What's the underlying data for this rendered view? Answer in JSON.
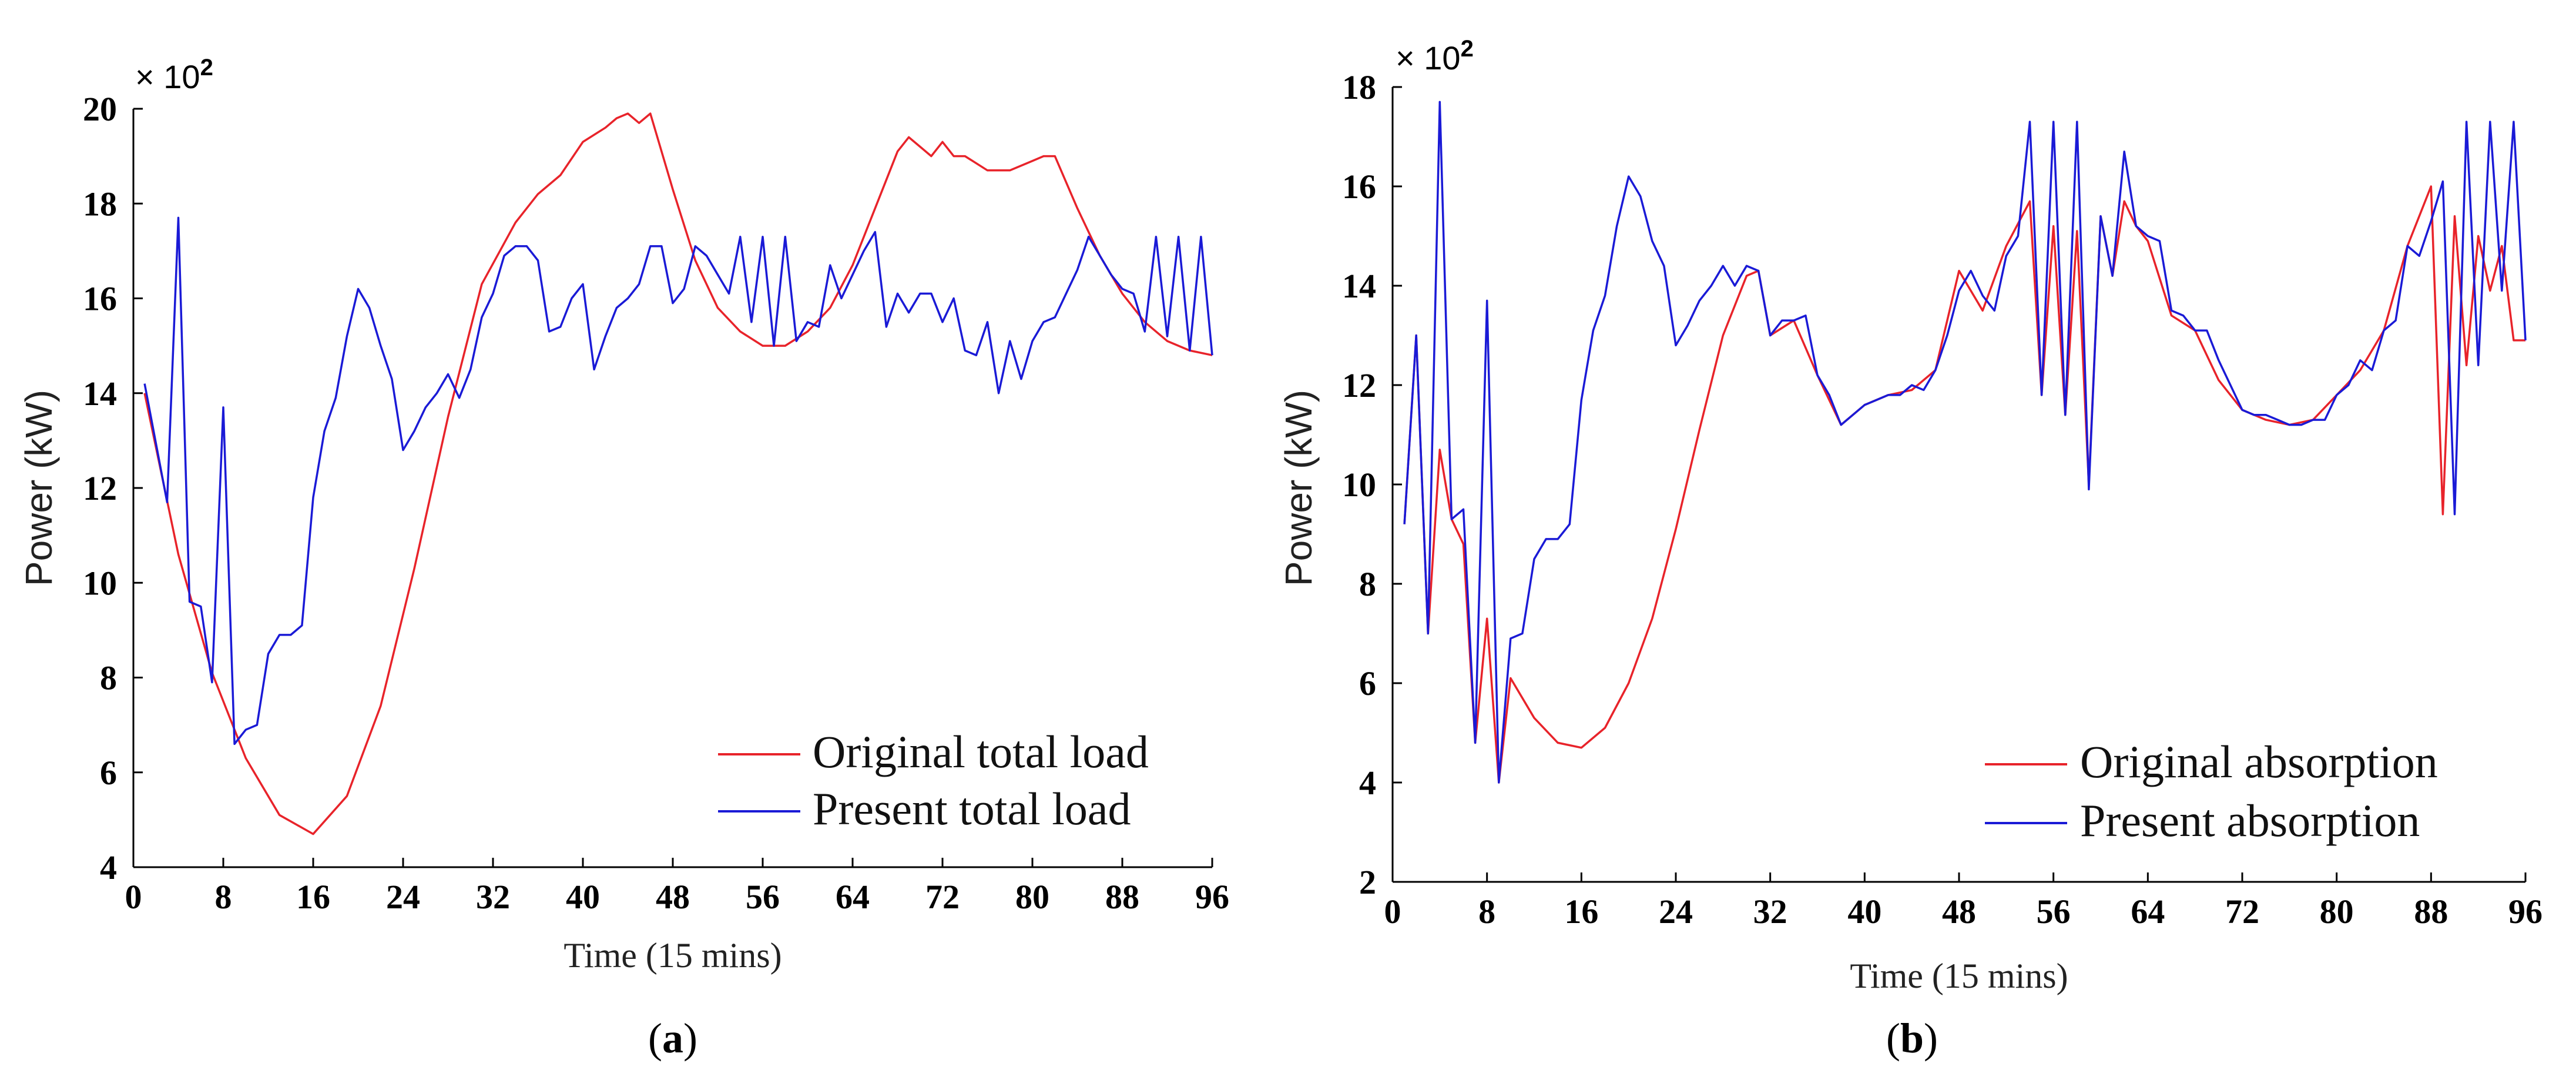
{
  "chart_data": [
    {
      "type": "line",
      "panel": "(a)",
      "panel_letter": "a",
      "xlabel": "Time (15 mins)",
      "ylabel": "Power (kW)",
      "multiplier": "× 10",
      "multiplier_exp": "2",
      "xlim": [
        0,
        96
      ],
      "ylim": [
        4,
        20
      ],
      "xticks": [
        0,
        8,
        16,
        24,
        32,
        40,
        48,
        56,
        64,
        72,
        80,
        88,
        96
      ],
      "yticks": [
        4,
        6,
        8,
        10,
        12,
        14,
        16,
        18,
        20
      ],
      "legend": [
        "Original total load",
        "Present total load"
      ],
      "legend_position": "bottom-right",
      "series": [
        {
          "name": "Original total load",
          "color": "#e8232a",
          "x": [
            1,
            4,
            7,
            10,
            13,
            16,
            19,
            22,
            25,
            28,
            31,
            34,
            36,
            38,
            40,
            42,
            43,
            44,
            45,
            46,
            47,
            48,
            50,
            52,
            54,
            56,
            58,
            60,
            62,
            64,
            66,
            68,
            69,
            70,
            71,
            72,
            73,
            74,
            76,
            78,
            80,
            81,
            82,
            84,
            86,
            88,
            90,
            92,
            94,
            96
          ],
          "y": [
            14.0,
            10.6,
            8.1,
            6.3,
            5.1,
            4.7,
            5.5,
            7.4,
            10.3,
            13.5,
            16.3,
            17.6,
            18.2,
            18.6,
            19.3,
            19.6,
            19.8,
            19.9,
            19.7,
            19.9,
            19.1,
            18.3,
            16.8,
            15.8,
            15.3,
            15.0,
            15.0,
            15.3,
            15.8,
            16.7,
            17.9,
            19.1,
            19.4,
            19.2,
            19.0,
            19.3,
            19.0,
            19.0,
            18.7,
            18.7,
            18.9,
            19.0,
            19.0,
            17.9,
            16.9,
            16.1,
            15.5,
            15.1,
            14.9,
            14.8
          ]
        },
        {
          "name": "Present total load",
          "color": "#1a1ad6",
          "x": [
            1,
            3,
            4,
            5,
            6,
            7,
            8,
            9,
            10,
            11,
            12,
            13,
            14,
            15,
            16,
            17,
            18,
            19,
            20,
            21,
            22,
            23,
            24,
            25,
            26,
            27,
            28,
            29,
            30,
            31,
            32,
            33,
            34,
            35,
            36,
            37,
            38,
            39,
            40,
            41,
            42,
            43,
            44,
            45,
            46,
            47,
            48,
            49,
            50,
            51,
            52,
            53,
            54,
            55,
            56,
            57,
            58,
            59,
            60,
            61,
            62,
            63,
            64,
            65,
            66,
            67,
            68,
            69,
            70,
            71,
            72,
            73,
            74,
            75,
            76,
            77,
            78,
            79,
            80,
            81,
            82,
            83,
            84,
            85,
            86,
            87,
            88,
            89,
            90,
            91,
            92,
            93,
            94,
            95,
            96
          ],
          "y": [
            14.2,
            11.7,
            17.7,
            9.6,
            9.5,
            7.9,
            13.7,
            6.6,
            6.9,
            7.0,
            8.5,
            8.9,
            8.9,
            9.1,
            11.8,
            13.2,
            13.9,
            15.2,
            16.2,
            15.8,
            15.0,
            14.3,
            12.8,
            13.2,
            13.7,
            14.0,
            14.4,
            13.9,
            14.5,
            15.6,
            16.1,
            16.9,
            17.1,
            17.1,
            16.8,
            15.3,
            15.4,
            16.0,
            16.3,
            14.5,
            15.2,
            15.8,
            16.0,
            16.3,
            17.1,
            17.1,
            15.9,
            16.2,
            17.1,
            16.9,
            16.5,
            16.1,
            17.3,
            15.5,
            17.3,
            15.0,
            17.3,
            15.1,
            15.5,
            15.4,
            16.7,
            16.0,
            16.5,
            17.0,
            17.4,
            15.4,
            16.1,
            15.7,
            16.1,
            16.1,
            15.5,
            16.0,
            14.9,
            14.8,
            15.5,
            14.0,
            15.1,
            14.3,
            15.1,
            15.5,
            15.6,
            16.1,
            16.6,
            17.3,
            16.9,
            16.5,
            16.2,
            16.1,
            15.3,
            17.3,
            15.2,
            17.3,
            14.9,
            17.3,
            14.8
          ]
        }
      ]
    },
    {
      "type": "line",
      "panel": "(b)",
      "panel_letter": "b",
      "xlabel": "Time (15 mins)",
      "ylabel": "Power (kW)",
      "multiplier": "× 10",
      "multiplier_exp": "2",
      "xlim": [
        0,
        96
      ],
      "ylim": [
        2,
        18
      ],
      "xticks": [
        0,
        8,
        16,
        24,
        32,
        40,
        48,
        56,
        64,
        72,
        80,
        88,
        96
      ],
      "yticks": [
        2,
        4,
        6,
        8,
        10,
        12,
        14,
        16,
        18
      ],
      "legend": [
        "Original absorption",
        "Present absorption"
      ],
      "legend_position": "bottom-right",
      "series": [
        {
          "name": "Original absorption",
          "color": "#e8232a",
          "x": [
            1,
            2,
            3,
            4,
            5,
            6,
            7,
            8,
            9,
            10,
            12,
            14,
            16,
            18,
            20,
            22,
            24,
            26,
            28,
            30,
            31,
            32,
            34,
            36,
            38,
            40,
            42,
            44,
            46,
            48,
            50,
            52,
            54,
            55,
            56,
            57,
            58,
            59,
            60,
            61,
            62,
            63,
            64,
            66,
            68,
            70,
            72,
            74,
            76,
            78,
            80,
            82,
            84,
            86,
            88,
            89,
            90,
            91,
            92,
            93,
            94,
            95,
            96
          ],
          "y": [
            9.2,
            13.0,
            7.0,
            10.7,
            9.3,
            8.8,
            4.8,
            7.3,
            4.0,
            6.1,
            5.3,
            4.8,
            4.7,
            5.1,
            6.0,
            7.3,
            9.1,
            11.1,
            13.0,
            14.2,
            14.3,
            13.0,
            13.3,
            12.2,
            11.2,
            11.6,
            11.8,
            11.9,
            12.3,
            14.3,
            13.5,
            14.8,
            15.7,
            11.8,
            15.2,
            11.4,
            15.1,
            10.0,
            15.4,
            14.2,
            15.7,
            15.2,
            14.9,
            13.4,
            13.1,
            12.1,
            11.5,
            11.3,
            11.2,
            11.3,
            11.8,
            12.3,
            13.1,
            14.8,
            16.0,
            9.4,
            15.4,
            12.4,
            15.0,
            13.9,
            14.8,
            12.9,
            12.9
          ]
        },
        {
          "name": "Present absorption",
          "color": "#1a1ad6",
          "x": [
            1,
            2,
            3,
            4,
            5,
            6,
            7,
            8,
            9,
            10,
            11,
            12,
            13,
            14,
            15,
            16,
            17,
            18,
            19,
            20,
            21,
            22,
            23,
            24,
            25,
            26,
            27,
            28,
            29,
            30,
            31,
            32,
            33,
            34,
            35,
            36,
            37,
            38,
            39,
            40,
            41,
            42,
            43,
            44,
            45,
            46,
            47,
            48,
            49,
            50,
            51,
            52,
            53,
            54,
            55,
            56,
            57,
            58,
            59,
            60,
            61,
            62,
            63,
            64,
            65,
            66,
            67,
            68,
            69,
            70,
            71,
            72,
            73,
            74,
            75,
            76,
            77,
            78,
            79,
            80,
            81,
            82,
            83,
            84,
            85,
            86,
            87,
            88,
            89,
            90,
            91,
            92,
            93,
            94,
            95,
            96
          ],
          "y": [
            9.2,
            13.0,
            7.0,
            17.7,
            9.3,
            9.5,
            4.8,
            13.7,
            4.0,
            6.9,
            7.0,
            8.5,
            8.9,
            8.9,
            9.2,
            11.7,
            13.1,
            13.8,
            15.2,
            16.2,
            15.8,
            14.9,
            14.4,
            12.8,
            13.2,
            13.7,
            14.0,
            14.4,
            14.0,
            14.4,
            14.3,
            13.0,
            13.3,
            13.3,
            13.4,
            12.2,
            11.8,
            11.2,
            11.4,
            11.6,
            11.7,
            11.8,
            11.8,
            12.0,
            11.9,
            12.3,
            13.0,
            13.9,
            14.3,
            13.8,
            13.5,
            14.6,
            15.0,
            17.3,
            11.8,
            17.3,
            11.4,
            17.3,
            9.9,
            15.4,
            14.2,
            16.7,
            15.2,
            15.0,
            14.9,
            13.5,
            13.4,
            13.1,
            13.1,
            12.5,
            12.0,
            11.5,
            11.4,
            11.4,
            11.3,
            11.2,
            11.2,
            11.3,
            11.3,
            11.8,
            12.0,
            12.5,
            12.3,
            13.1,
            13.3,
            14.8,
            14.6,
            15.3,
            16.1,
            9.4,
            17.3,
            12.4,
            17.3,
            13.9,
            17.3,
            12.9
          ]
        }
      ]
    }
  ]
}
